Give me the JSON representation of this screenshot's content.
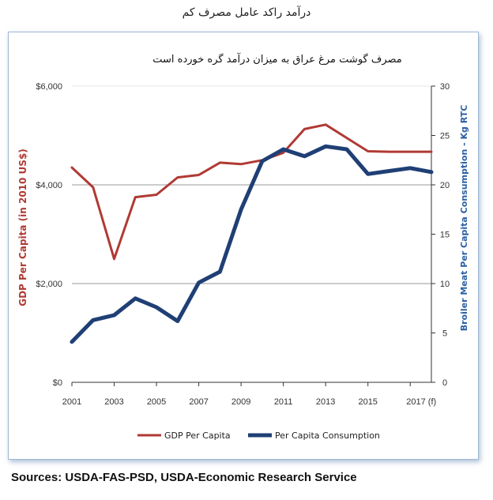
{
  "caption": "درآمد راکد عامل مصرف کم",
  "sources": "Sources:  USDA-FAS-PSD, USDA-Economic Research Service",
  "chart_data": {
    "type": "line",
    "title": "مصرف گوشت مرغ عراق به میزان درآمد گره خورده است",
    "ylabel_left": "GDP Per Capita (in 2010 US$)",
    "ylabel_right": "Broiler Meat Per Capita Consumption - Kg RTC",
    "xlim": [
      2001,
      2018
    ],
    "ylim_left": [
      0,
      6000
    ],
    "ylim_right": [
      0,
      30
    ],
    "x_ticks": [
      "2001",
      "2003",
      "2005",
      "2007",
      "2009",
      "2011",
      "2013",
      "2015",
      "2017 (f)"
    ],
    "y_ticks_left": [
      "$0",
      "$2,000",
      "$4,000",
      "$6,000"
    ],
    "y_ticks_right": [
      "0",
      "5",
      "10",
      "15",
      "20",
      "25",
      "30"
    ],
    "grid": "horizontal at $2,000 and $4,000",
    "legend_position": "bottom",
    "colors": {
      "gdp": "#b03a34",
      "consumption": "#1f3f75"
    },
    "series": [
      {
        "name": "GDP Per Capita",
        "axis": "left",
        "x": [
          2001,
          2002,
          2003,
          2004,
          2005,
          2006,
          2007,
          2008,
          2009,
          2010,
          2011,
          2012,
          2013,
          2014,
          2015,
          2016,
          2017,
          2018
        ],
        "values": [
          4350,
          3950,
          2500,
          3750,
          3800,
          4150,
          4200,
          4450,
          4420,
          4500,
          4650,
          5130,
          5220,
          4950,
          4680,
          4670,
          4670,
          4670
        ]
      },
      {
        "name": "Per Capita Consumption",
        "axis": "right",
        "x": [
          2001,
          2002,
          2003,
          2004,
          2005,
          2006,
          2007,
          2008,
          2009,
          2010,
          2011,
          2012,
          2013,
          2014,
          2015,
          2016,
          2017,
          2018
        ],
        "values": [
          4.1,
          6.3,
          6.8,
          8.5,
          7.6,
          6.2,
          10.1,
          11.2,
          17.5,
          22.4,
          23.6,
          22.9,
          23.9,
          23.6,
          21.1,
          21.4,
          21.7,
          21.3
        ]
      }
    ]
  }
}
